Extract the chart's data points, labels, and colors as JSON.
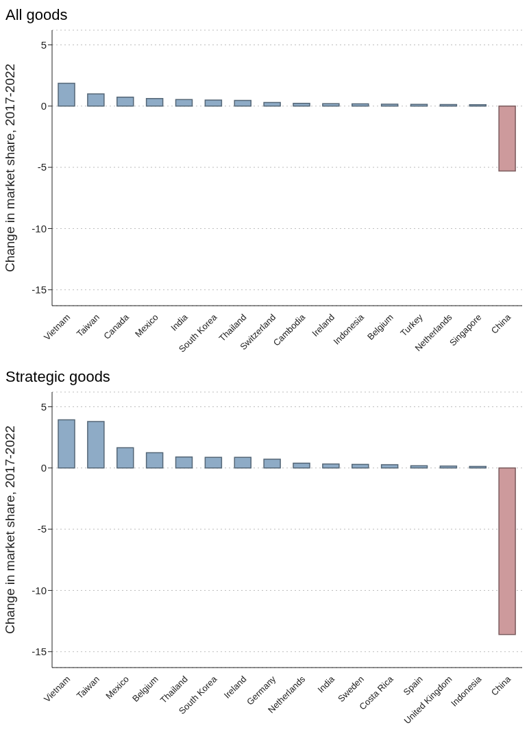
{
  "chart_data": [
    {
      "type": "bar",
      "title": "All goods",
      "ylabel": "Change in market share, 2017-2022",
      "categories": [
        "Vietnam",
        "Taiwan",
        "Canada",
        "Mexico",
        "India",
        "South Korea",
        "Thailand",
        "Switzerland",
        "Cambodia",
        "Ireland",
        "Indonesia",
        "Belgium",
        "Turkey",
        "Netherlands",
        "Singapore",
        "China"
      ],
      "values": [
        1.86,
        0.99,
        0.73,
        0.62,
        0.54,
        0.49,
        0.46,
        0.3,
        0.22,
        0.2,
        0.18,
        0.15,
        0.14,
        0.13,
        0.12,
        -5.3
      ],
      "colors": [
        "#8eabc6",
        "#8eabc6",
        "#8eabc6",
        "#8eabc6",
        "#8eabc6",
        "#8eabc6",
        "#8eabc6",
        "#8eabc6",
        "#8eabc6",
        "#8eabc6",
        "#8eabc6",
        "#8eabc6",
        "#8eabc6",
        "#8eabc6",
        "#8eabc6",
        "#cd9a9c"
      ],
      "ylim": [
        -16.3,
        6.2
      ],
      "yticks": [
        -15,
        -10,
        -5,
        0,
        5
      ],
      "grid": "y"
    },
    {
      "type": "bar",
      "title": "Strategic goods",
      "ylabel": "Change in market share, 2017-2022",
      "categories": [
        "Vietnam",
        "Taiwan",
        "Mexico",
        "Belgium",
        "Thailand",
        "South Korea",
        "Ireland",
        "Germany",
        "Netherlands",
        "India",
        "Sweden",
        "Costa Rica",
        "Spain",
        "United Kingdom",
        "Indonesia",
        "China"
      ],
      "values": [
        3.93,
        3.8,
        1.65,
        1.24,
        0.9,
        0.87,
        0.87,
        0.72,
        0.4,
        0.32,
        0.3,
        0.27,
        0.18,
        0.15,
        0.13,
        -13.6
      ],
      "colors": [
        "#8eabc6",
        "#8eabc6",
        "#8eabc6",
        "#8eabc6",
        "#8eabc6",
        "#8eabc6",
        "#8eabc6",
        "#8eabc6",
        "#8eabc6",
        "#8eabc6",
        "#8eabc6",
        "#8eabc6",
        "#8eabc6",
        "#8eabc6",
        "#8eabc6",
        "#cd9a9c"
      ],
      "ylim": [
        -16.3,
        6.2
      ],
      "yticks": [
        -15,
        -10,
        -5,
        0,
        5
      ],
      "grid": "y"
    }
  ]
}
